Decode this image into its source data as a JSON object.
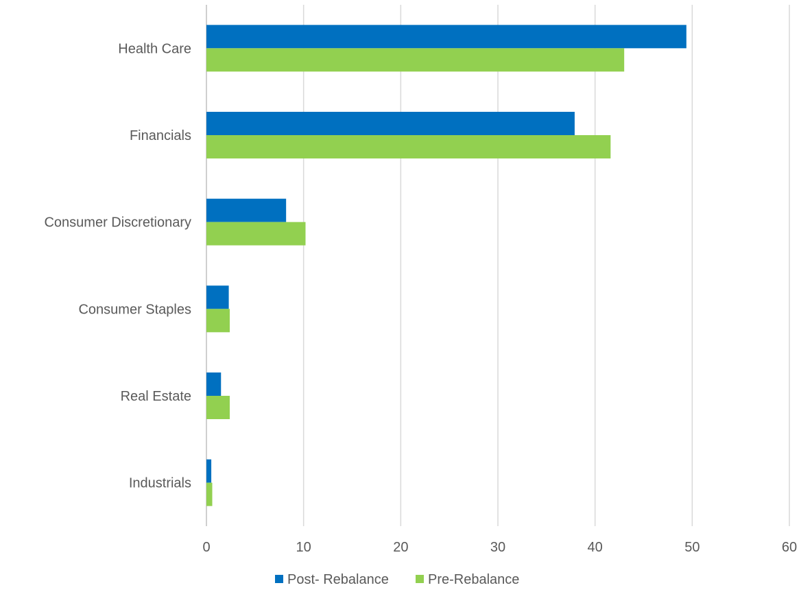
{
  "chart_data": {
    "type": "bar",
    "orientation": "horizontal",
    "categories": [
      "Health Care",
      "Financials",
      "Consumer Discretionary",
      "Consumer Staples",
      "Real Estate",
      "Industrials"
    ],
    "series": [
      {
        "name": "Post- Rebalance",
        "color": "#0070C0",
        "values": [
          49.4,
          37.9,
          8.2,
          2.3,
          1.5,
          0.5
        ]
      },
      {
        "name": "Pre-Rebalance",
        "color": "#92D050",
        "values": [
          43.0,
          41.6,
          10.2,
          2.4,
          2.4,
          0.6
        ]
      }
    ],
    "xlim": [
      0,
      60
    ],
    "xticks": [
      "0",
      "10",
      "20",
      "30",
      "40",
      "50",
      "60"
    ],
    "grid": true,
    "legend_position": "bottom"
  }
}
